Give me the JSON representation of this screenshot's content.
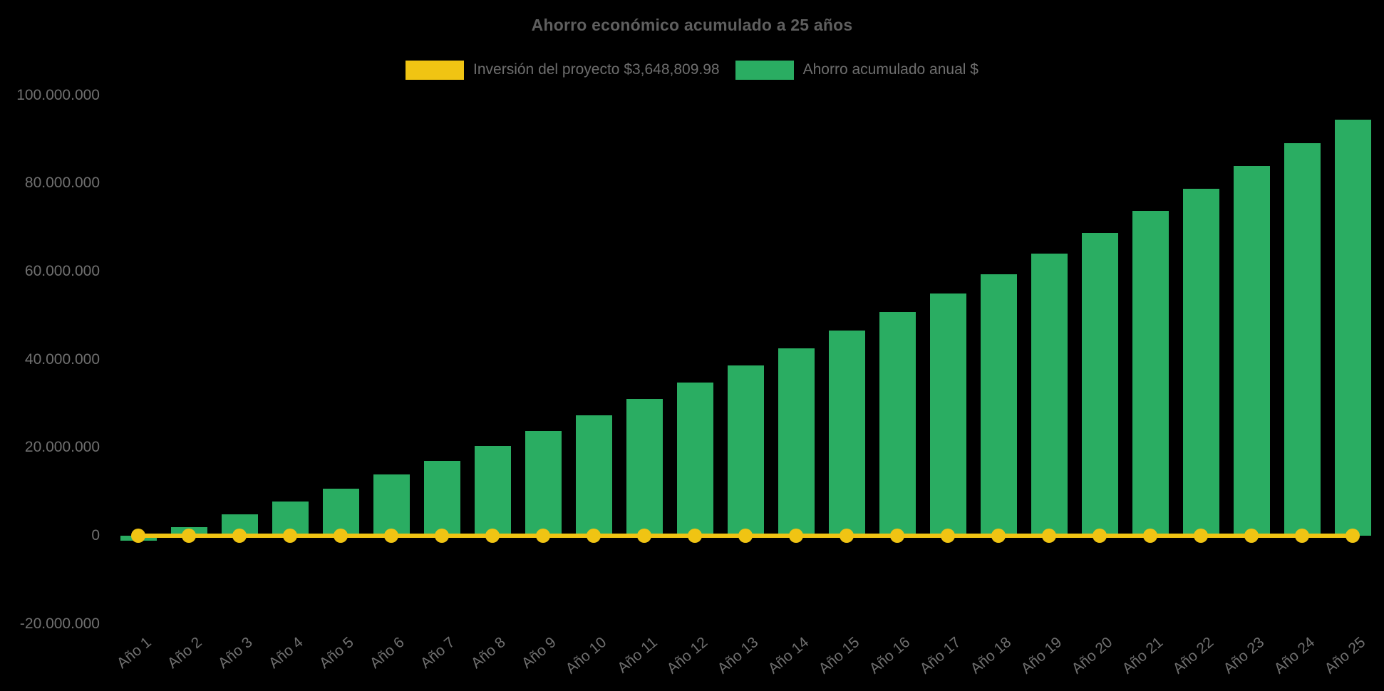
{
  "title": "Ahorro económico acumulado a 25 años",
  "legend": {
    "position": "top",
    "items": [
      {
        "label": "Inversión del proyecto $3,648,809.98",
        "color": "#F0C413",
        "series_type": "line"
      },
      {
        "label": "Ahorro acumulado anual $",
        "color": "#2AAD62",
        "series_type": "bar"
      }
    ]
  },
  "colors": {
    "background": "#000000",
    "title_text": "#5F5F5F",
    "legend_text": "#6E6E6E",
    "axis_label_text": "#707070",
    "bar_fill": "#2AAD62",
    "line_stroke": "#F0C413"
  },
  "chart_data": {
    "type": "bar",
    "title": "Ahorro económico acumulado a 25 años",
    "categories": [
      "Año 1",
      "Año 2",
      "Año 3",
      "Año 4",
      "Año 5",
      "Año 6",
      "Año 7",
      "Año 8",
      "Año 9",
      "Año 10",
      "Año 11",
      "Año 12",
      "Año 13",
      "Año 14",
      "Año 15",
      "Año 16",
      "Año 17",
      "Año 18",
      "Año 19",
      "Año 20",
      "Año 21",
      "Año 22",
      "Año 23",
      "Año 24",
      "Año 25"
    ],
    "series": [
      {
        "name": "Ahorro acumulado anual $",
        "type": "bar",
        "color": "#2AAD62",
        "values_estimated_from_axis": true,
        "values": [
          -1100000,
          1900000,
          4800000,
          7700000,
          10700000,
          13900000,
          17000000,
          20400000,
          23800000,
          27400000,
          31100000,
          34800000,
          38600000,
          42500000,
          46600000,
          50700000,
          55000000,
          59400000,
          64100000,
          68800000,
          73700000,
          78700000,
          83900000,
          89100000,
          94500000
        ]
      },
      {
        "name": "Inversión del proyecto $3,648,809.98",
        "type": "line",
        "color": "#F0C413",
        "marker": "circle",
        "investment_value": 3648809.98,
        "rendered_y_value": 0
      }
    ],
    "y_axis": {
      "min": -20000000,
      "max": 100000000,
      "tick_interval": 20000000,
      "ticks": [
        {
          "value": 100000000,
          "label": "100.000.000"
        },
        {
          "value": 80000000,
          "label": "80.000.000"
        },
        {
          "value": 60000000,
          "label": "60.000.000"
        },
        {
          "value": 40000000,
          "label": "40.000.000"
        },
        {
          "value": 20000000,
          "label": "20.000.000"
        },
        {
          "value": 0,
          "label": "0"
        },
        {
          "value": -20000000,
          "label": "-20.000.000"
        }
      ]
    },
    "x_axis": {
      "label_rotation_deg": -40
    },
    "grid": false,
    "legend_position": "top",
    "background": "#000000"
  }
}
